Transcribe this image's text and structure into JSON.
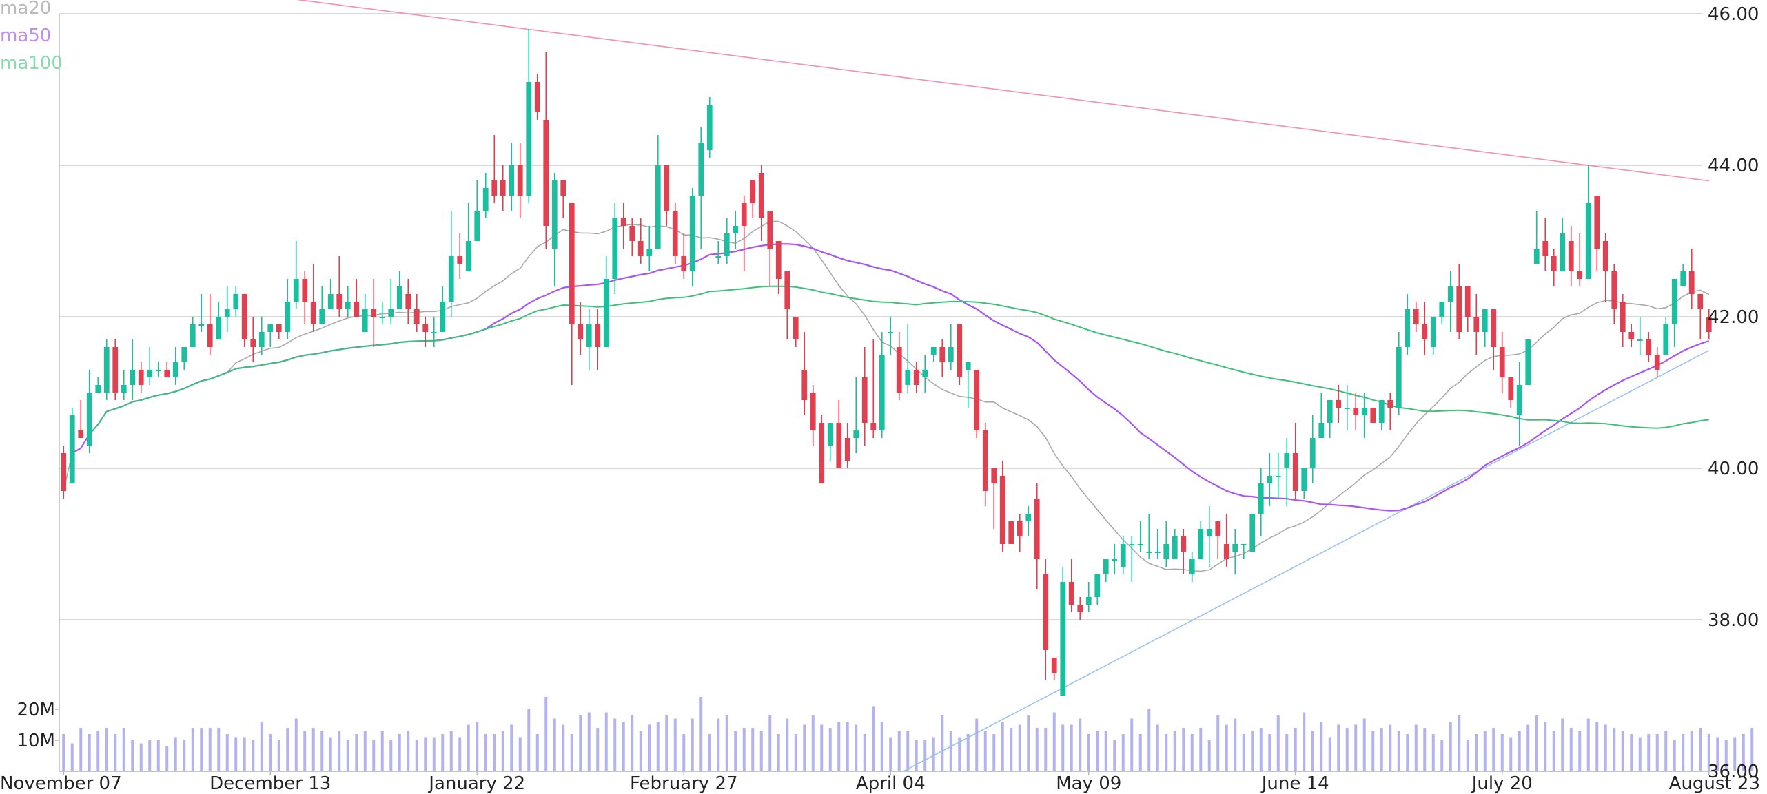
{
  "chart_data": {
    "type": "candlestick",
    "y_axis": {
      "range": [
        36,
        46
      ],
      "ticks": [
        "36.00",
        "38.00",
        "40.00",
        "42.00",
        "44.00",
        "46.00"
      ],
      "grid": true,
      "side": "right"
    },
    "x_axis": {
      "ticks": [
        "November 07",
        "December 13",
        "January 22",
        "February 27",
        "April 04",
        "May 09",
        "June 14",
        "July 20",
        "August 23"
      ]
    },
    "volume_axis": {
      "ticks": [
        "10M",
        "20M"
      ]
    },
    "legend": [
      {
        "label": "ma20",
        "color": "#bbbbbb"
      },
      {
        "label": "ma50",
        "color": "#c48cf0"
      },
      {
        "label": "ma100",
        "color": "#86dcab"
      }
    ],
    "colors": {
      "up": "#1bbfa0",
      "down": "#e04050",
      "volume": "#b3b3ee",
      "ma20": "#aaaaaa",
      "ma50": "#a855f7",
      "ma100": "#3cc07a",
      "resistance": "#f48fb1",
      "support": "#9cc3f0"
    },
    "candles_ohlc": [
      [
        40.2,
        40.3,
        39.7,
        39.6
      ],
      [
        39.8,
        40.8,
        40.7,
        39.8
      ],
      [
        40.5,
        40.9,
        40.4,
        40.4
      ],
      [
        40.3,
        41.3,
        41.0,
        40.2
      ],
      [
        41.0,
        41.2,
        41.1,
        41.0
      ],
      [
        41.0,
        41.7,
        41.6,
        40.9
      ],
      [
        41.6,
        41.7,
        41.0,
        40.9
      ],
      [
        41.0,
        41.3,
        41.1,
        40.9
      ],
      [
        41.1,
        41.7,
        41.3,
        40.9
      ],
      [
        41.3,
        41.4,
        41.1,
        41.0
      ],
      [
        41.2,
        41.6,
        41.3,
        41.1
      ],
      [
        41.3,
        41.4,
        41.3,
        41.2
      ],
      [
        41.3,
        41.4,
        41.2,
        41.2
      ],
      [
        41.2,
        41.6,
        41.4,
        41.1
      ],
      [
        41.4,
        41.6,
        41.6,
        41.3
      ],
      [
        41.6,
        42.0,
        41.9,
        41.6
      ],
      [
        41.9,
        42.3,
        41.9,
        41.8
      ],
      [
        41.9,
        42.3,
        41.6,
        41.5
      ],
      [
        41.7,
        42.2,
        42.0,
        41.7
      ],
      [
        42.0,
        42.4,
        42.1,
        41.8
      ],
      [
        42.1,
        42.4,
        42.3,
        42.0
      ],
      [
        42.3,
        42.3,
        41.7,
        41.6
      ],
      [
        41.7,
        42.0,
        41.6,
        41.4
      ],
      [
        41.6,
        42.0,
        41.8,
        41.5
      ],
      [
        41.8,
        41.9,
        41.9,
        41.6
      ],
      [
        41.9,
        41.9,
        41.8,
        41.7
      ],
      [
        41.8,
        42.5,
        42.2,
        41.7
      ],
      [
        42.2,
        43.0,
        42.5,
        42.1
      ],
      [
        42.5,
        42.6,
        42.2,
        41.9
      ],
      [
        42.2,
        42.7,
        41.9,
        41.8
      ],
      [
        41.9,
        42.4,
        42.1,
        41.9
      ],
      [
        42.1,
        42.5,
        42.3,
        42.1
      ],
      [
        42.3,
        42.8,
        42.1,
        42.0
      ],
      [
        42.1,
        42.4,
        42.2,
        42.0
      ],
      [
        42.2,
        42.5,
        42.0,
        42.0
      ],
      [
        41.8,
        42.3,
        42.1,
        41.8
      ],
      [
        42.1,
        42.5,
        42.0,
        41.6
      ],
      [
        42.0,
        42.2,
        42.0,
        41.9
      ],
      [
        42.0,
        42.5,
        42.1,
        41.9
      ],
      [
        42.1,
        42.6,
        42.4,
        42.1
      ],
      [
        42.3,
        42.5,
        42.1,
        41.9
      ],
      [
        42.1,
        42.3,
        41.9,
        41.8
      ],
      [
        41.9,
        42.0,
        41.8,
        41.6
      ],
      [
        41.8,
        42.0,
        41.8,
        41.6
      ],
      [
        41.8,
        42.4,
        42.2,
        41.8
      ],
      [
        42.2,
        43.4,
        42.8,
        42.0
      ],
      [
        42.8,
        43.1,
        42.7,
        42.5
      ],
      [
        42.6,
        43.5,
        43.0,
        42.6
      ],
      [
        43.0,
        43.8,
        43.4,
        43.0
      ],
      [
        43.4,
        43.9,
        43.7,
        43.3
      ],
      [
        43.8,
        44.4,
        43.6,
        43.5
      ],
      [
        43.8,
        44.0,
        43.6,
        43.4
      ],
      [
        43.6,
        44.3,
        44.0,
        43.4
      ],
      [
        44.0,
        44.3,
        43.6,
        43.3
      ],
      [
        43.6,
        45.8,
        45.1,
        43.5
      ],
      [
        45.1,
        45.2,
        44.7,
        44.6
      ],
      [
        44.6,
        45.5,
        43.2,
        42.9
      ],
      [
        42.9,
        43.9,
        43.8,
        42.4
      ],
      [
        43.8,
        43.6,
        43.6,
        43.3
      ],
      [
        43.5,
        43.4,
        41.9,
        41.1
      ],
      [
        41.9,
        42.2,
        41.7,
        41.5
      ],
      [
        41.6,
        42.1,
        41.9,
        41.3
      ],
      [
        41.9,
        42.1,
        41.6,
        41.3
      ],
      [
        41.6,
        42.8,
        42.5,
        41.6
      ],
      [
        42.5,
        43.5,
        43.3,
        42.3
      ],
      [
        43.3,
        43.5,
        43.2,
        42.9
      ],
      [
        43.2,
        43.3,
        43.0,
        42.8
      ],
      [
        43.0,
        43.3,
        42.8,
        42.7
      ],
      [
        42.8,
        43.2,
        42.9,
        42.6
      ],
      [
        42.9,
        44.4,
        44.0,
        42.9
      ],
      [
        44.0,
        43.8,
        43.4,
        43.2
      ],
      [
        43.4,
        43.5,
        42.8,
        42.7
      ],
      [
        42.8,
        43.1,
        42.6,
        42.5
      ],
      [
        42.6,
        43.7,
        43.6,
        42.4
      ],
      [
        43.6,
        44.5,
        44.3,
        42.9
      ],
      [
        44.2,
        44.9,
        44.8,
        44.1
      ],
      [
        42.8,
        43.0,
        42.8,
        42.7
      ],
      [
        42.8,
        43.3,
        43.1,
        42.7
      ],
      [
        43.1,
        43.4,
        43.2,
        42.9
      ],
      [
        43.5,
        43.6,
        43.2,
        42.6
      ],
      [
        43.8,
        43.8,
        43.5,
        43.3
      ],
      [
        43.9,
        44.0,
        43.3,
        43.0
      ],
      [
        43.4,
        43.4,
        42.9,
        42.4
      ],
      [
        43.0,
        43.0,
        42.5,
        42.3
      ],
      [
        42.6,
        42.6,
        42.1,
        41.7
      ],
      [
        42.0,
        41.7,
        41.7,
        41.6
      ],
      [
        41.3,
        41.8,
        40.9,
        40.7
      ],
      [
        41.0,
        41.1,
        40.5,
        40.3
      ],
      [
        40.6,
        40.7,
        39.8,
        39.9
      ],
      [
        40.3,
        40.6,
        40.6,
        40.1
      ],
      [
        40.6,
        40.9,
        40.0,
        40.0
      ],
      [
        40.4,
        40.6,
        40.1,
        40.0
      ],
      [
        40.4,
        41.2,
        40.5,
        40.2
      ],
      [
        41.2,
        41.6,
        40.6,
        40.3
      ],
      [
        40.6,
        41.7,
        40.5,
        40.4
      ],
      [
        40.5,
        41.8,
        41.5,
        40.4
      ],
      [
        41.8,
        42.0,
        41.8,
        41.5
      ],
      [
        41.6,
        41.8,
        41.0,
        40.9
      ],
      [
        41.1,
        41.9,
        41.3,
        41.0
      ],
      [
        41.3,
        41.4,
        41.1,
        41.0
      ],
      [
        41.2,
        41.5,
        41.3,
        41.0
      ],
      [
        41.5,
        41.5,
        41.6,
        41.4
      ],
      [
        41.6,
        41.7,
        41.4,
        41.2
      ],
      [
        41.4,
        41.9,
        41.6,
        41.3
      ],
      [
        41.9,
        41.9,
        41.2,
        41.1
      ],
      [
        41.3,
        41.4,
        41.4,
        40.8
      ],
      [
        41.3,
        41.3,
        40.5,
        40.4
      ],
      [
        40.5,
        40.6,
        39.7,
        39.5
      ],
      [
        40.0,
        40.0,
        39.8,
        39.2
      ],
      [
        39.9,
        40.1,
        39.0,
        38.9
      ],
      [
        39.3,
        39.2,
        39.0,
        39.0
      ],
      [
        39.3,
        39.4,
        39.1,
        38.9
      ],
      [
        39.3,
        39.5,
        39.4,
        39.1
      ],
      [
        39.6,
        39.8,
        38.8,
        38.4
      ],
      [
        38.6,
        38.8,
        37.6,
        37.2
      ],
      [
        37.5,
        37.4,
        37.3,
        37.2
      ],
      [
        37.0,
        38.7,
        38.5,
        37.1
      ],
      [
        38.5,
        38.8,
        38.2,
        38.1
      ],
      [
        38.2,
        38.3,
        38.1,
        38.0
      ],
      [
        38.2,
        38.5,
        38.3,
        38.1
      ],
      [
        38.3,
        38.6,
        38.6,
        38.2
      ],
      [
        38.6,
        38.8,
        38.8,
        38.5
      ],
      [
        38.8,
        39.0,
        38.8,
        38.6
      ],
      [
        38.7,
        39.1,
        39.0,
        38.6
      ],
      [
        39.0,
        39.1,
        39.0,
        38.5
      ],
      [
        39.0,
        39.3,
        39.0,
        38.9
      ],
      [
        38.9,
        39.4,
        38.9,
        38.8
      ],
      [
        38.9,
        39.2,
        38.9,
        38.8
      ],
      [
        38.8,
        39.3,
        39.0,
        38.7
      ],
      [
        38.8,
        39.2,
        39.1,
        38.9
      ],
      [
        39.1,
        39.2,
        38.9,
        38.6
      ],
      [
        38.6,
        38.9,
        38.8,
        38.5
      ],
      [
        38.8,
        39.3,
        39.2,
        38.8
      ],
      [
        39.1,
        39.5,
        39.2,
        38.7
      ],
      [
        39.3,
        39.2,
        39.1,
        38.8
      ],
      [
        39.0,
        39.4,
        38.8,
        38.7
      ],
      [
        38.9,
        39.2,
        39.0,
        38.6
      ],
      [
        39.0,
        39.0,
        39.0,
        38.8
      ],
      [
        38.9,
        39.4,
        39.4,
        38.9
      ],
      [
        39.4,
        40.0,
        39.8,
        39.1
      ],
      [
        39.8,
        40.2,
        39.9,
        39.5
      ],
      [
        39.9,
        40.2,
        39.9,
        39.6
      ],
      [
        40.0,
        40.4,
        40.2,
        39.5
      ],
      [
        40.2,
        40.6,
        39.7,
        39.6
      ],
      [
        39.7,
        40.0,
        40.0,
        39.6
      ],
      [
        40.0,
        40.7,
        40.4,
        39.8
      ],
      [
        40.4,
        41.0,
        40.6,
        40.4
      ],
      [
        40.6,
        40.8,
        40.9,
        40.4
      ],
      [
        40.9,
        41.1,
        40.8,
        40.6
      ],
      [
        40.8,
        41.1,
        40.8,
        40.5
      ],
      [
        40.8,
        41.0,
        40.7,
        40.5
      ],
      [
        40.7,
        41.0,
        40.8,
        40.4
      ],
      [
        40.8,
        40.8,
        40.6,
        40.6
      ],
      [
        40.6,
        40.9,
        40.9,
        40.5
      ],
      [
        40.9,
        41.0,
        40.8,
        40.5
      ],
      [
        40.8,
        41.8,
        41.6,
        40.7
      ],
      [
        41.6,
        42.3,
        42.1,
        41.5
      ],
      [
        42.1,
        42.2,
        41.9,
        41.8
      ],
      [
        41.9,
        42.2,
        41.7,
        41.5
      ],
      [
        41.6,
        42.0,
        42.0,
        41.5
      ],
      [
        42.0,
        42.2,
        42.2,
        41.9
      ],
      [
        42.2,
        42.6,
        42.4,
        41.8
      ],
      [
        42.4,
        42.7,
        41.8,
        41.7
      ],
      [
        42.4,
        42.2,
        42.0,
        41.8
      ],
      [
        42.0,
        42.3,
        41.8,
        41.5
      ],
      [
        41.8,
        42.1,
        42.1,
        41.6
      ],
      [
        42.1,
        41.8,
        41.6,
        41.3
      ],
      [
        41.6,
        41.8,
        41.2,
        41.0
      ],
      [
        41.2,
        41.0,
        40.9,
        40.8
      ],
      [
        40.7,
        41.4,
        41.1,
        40.3
      ],
      [
        41.1,
        41.5,
        41.7,
        41.2
      ],
      [
        42.7,
        43.4,
        42.9,
        42.7
      ],
      [
        43.0,
        43.3,
        42.8,
        42.6
      ],
      [
        42.8,
        42.9,
        42.6,
        42.4
      ],
      [
        42.6,
        43.3,
        43.1,
        42.7
      ],
      [
        43.0,
        43.2,
        42.6,
        42.4
      ],
      [
        42.6,
        43.1,
        42.5,
        42.4
      ],
      [
        42.5,
        44.0,
        43.5,
        42.8
      ],
      [
        43.6,
        43.5,
        42.9,
        42.6
      ],
      [
        43.0,
        43.1,
        42.6,
        42.2
      ],
      [
        42.6,
        42.7,
        42.1,
        41.9
      ],
      [
        42.2,
        42.3,
        41.8,
        41.6
      ],
      [
        41.8,
        41.9,
        41.7,
        41.6
      ],
      [
        41.7,
        42.0,
        41.7,
        41.5
      ],
      [
        41.7,
        41.8,
        41.5,
        41.4
      ],
      [
        41.5,
        41.6,
        41.3,
        41.2
      ],
      [
        41.5,
        42.0,
        41.9,
        41.5
      ],
      [
        41.9,
        42.4,
        42.5,
        41.6
      ],
      [
        42.4,
        42.7,
        42.6,
        42.5
      ],
      [
        42.6,
        42.9,
        42.3,
        42.1
      ],
      [
        42.3,
        42.3,
        42.1,
        41.7
      ],
      [
        42.0,
        42.1,
        41.8,
        41.7
      ]
    ],
    "volume_millions": [
      12,
      9,
      14,
      12,
      13,
      14,
      12,
      14,
      10,
      9,
      10,
      10,
      8,
      11,
      10,
      14,
      14,
      14,
      14,
      12,
      11,
      11,
      10,
      16,
      12,
      10,
      14,
      17,
      13,
      14,
      13,
      11,
      13,
      10,
      12,
      13,
      10,
      13,
      10,
      12,
      13,
      10,
      11,
      11,
      12,
      13,
      11,
      15,
      16,
      12,
      12,
      13,
      15,
      11,
      20,
      12,
      24,
      17,
      15,
      12,
      18,
      19,
      14,
      19,
      17,
      16,
      18,
      13,
      15,
      16,
      18,
      17,
      12,
      17,
      24,
      12,
      17,
      18,
      13,
      14,
      14,
      13,
      18,
      12,
      17,
      12,
      15,
      18,
      15,
      14,
      16,
      16,
      15,
      12,
      21,
      16,
      11,
      13,
      13,
      10,
      10,
      11,
      18,
      13,
      11,
      12,
      17,
      13,
      12,
      16,
      14,
      15,
      18,
      14,
      14,
      19,
      15,
      15,
      17,
      12,
      13,
      13,
      10,
      12,
      17,
      12,
      20,
      15,
      12,
      13,
      14,
      12,
      14,
      10,
      18,
      15,
      17,
      12,
      13,
      14,
      12,
      18,
      12,
      14,
      19,
      13,
      16,
      11,
      15,
      14,
      15,
      17,
      13,
      14,
      15,
      13,
      12,
      15,
      14,
      12,
      10,
      16,
      18,
      10,
      12,
      13,
      14,
      12,
      11,
      13,
      15,
      18,
      16,
      13,
      17,
      14,
      13,
      17,
      16,
      15,
      14,
      13,
      12,
      11,
      12,
      12,
      13,
      10,
      12,
      13,
      14,
      12,
      11,
      10,
      11,
      12,
      14
    ]
  }
}
